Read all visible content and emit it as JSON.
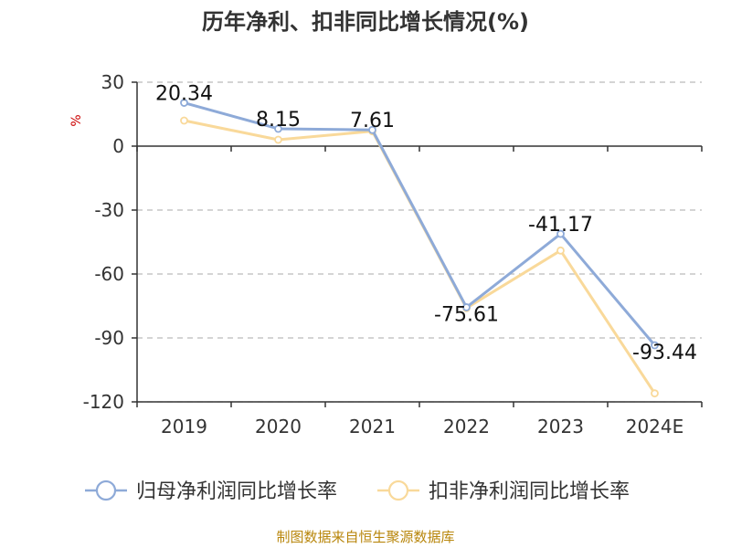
{
  "chart_data": {
    "type": "line",
    "title": "历年净利、扣非同比增长情况(%)",
    "ylabel": "%",
    "categories": [
      "2019",
      "2020",
      "2021",
      "2022",
      "2023",
      "2024E"
    ],
    "ylim": [
      -120,
      30
    ],
    "yticks": [
      "30",
      "0",
      "-30",
      "-60",
      "-90",
      "-120"
    ],
    "grid": true,
    "legend_position": "bottom",
    "series": [
      {
        "name": "归母净利润同比增长率",
        "color": "#8eaad8",
        "values": [
          20.34,
          8.15,
          7.61,
          -75.61,
          -41.17,
          -93.44
        ],
        "labels": [
          "20.34",
          "8.15",
          "7.61",
          "-75.61",
          "-41.17",
          "-93.44"
        ]
      },
      {
        "name": "扣非净利润同比增长率",
        "color": "#f9d99a",
        "values": [
          12,
          3,
          7,
          -76,
          -49,
          -116
        ]
      }
    ]
  },
  "source": "制图数据来自恒生聚源数据库"
}
